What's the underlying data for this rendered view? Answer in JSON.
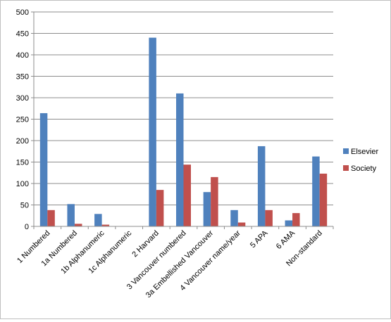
{
  "chart_data": {
    "type": "bar",
    "title": "",
    "xlabel": "",
    "ylabel": "",
    "categories": [
      "1 Numbered",
      "1a Numbered",
      "1b Alphanumeric",
      "1c Alphanumeric",
      "2 Harvard",
      "3 Vancouver numbered",
      "3a Embellished Vancouver",
      "4 Vancouver name/year",
      "5 APA",
      "6 AMA",
      "Non-standard"
    ],
    "series": [
      {
        "name": "Elsevier",
        "color": "#4f81bd",
        "values": [
          264,
          52,
          29,
          0,
          440,
          310,
          80,
          38,
          187,
          14,
          163
        ]
      },
      {
        "name": "Society",
        "color": "#c0504d",
        "values": [
          38,
          6,
          4,
          0,
          85,
          144,
          115,
          9,
          38,
          31,
          123
        ]
      }
    ],
    "ylim": [
      0,
      500
    ],
    "yticks": [
      "0",
      "50",
      "100",
      "150",
      "200",
      "250",
      "300",
      "350",
      "400",
      "450",
      "500"
    ],
    "grid": "horizontal",
    "legend": "right"
  }
}
